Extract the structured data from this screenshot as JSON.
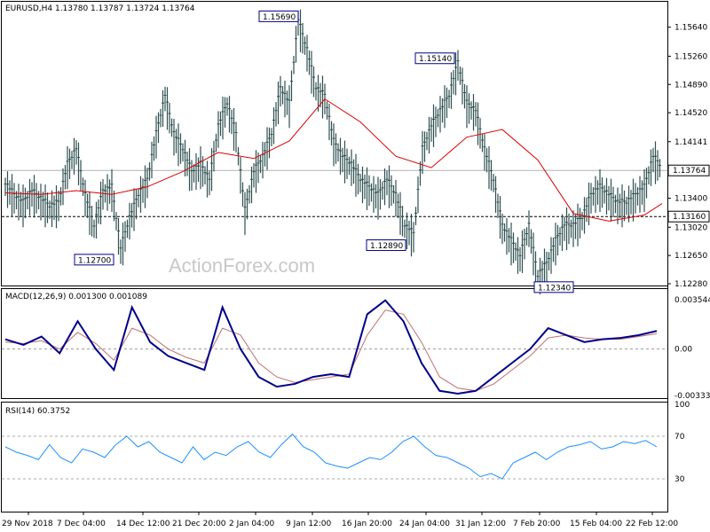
{
  "header": {
    "symbol_line": "EURUSD,H4  1.13780 1.13787 1.13724 1.13764",
    "watermark": "ActionForex.com"
  },
  "price_panel": {
    "y_ticks": [
      "1.15640",
      "1.15260",
      "1.14890",
      "1.14520",
      "1.14141",
      "1.13764",
      "1.13400",
      "1.13020",
      "1.12650",
      "1.12280"
    ],
    "current_price": "1.13764",
    "support_level": "1.13160",
    "annotations": [
      "1.15690",
      "1.15140",
      "1.12700",
      "1.12890",
      "1.12340"
    ]
  },
  "macd_panel": {
    "label": "MACD(12,26,9) 0.001300 0.001089",
    "y_ticks": [
      "0.003544",
      "0.00",
      "-0.003331"
    ]
  },
  "rsi_panel": {
    "label": "RSI(14) 60.3752",
    "y_ticks": [
      "100",
      "70",
      "30",
      "0"
    ]
  },
  "x_labels": [
    "29 Nov 2018",
    "7 Dec 04:00",
    "14 Dec 12:00",
    "21 Dec 20:00",
    "2 Jan 04:00",
    "9 Jan 12:00",
    "16 Jan 20:00",
    "24 Jan 04:00",
    "31 Jan 12:00",
    "7 Feb 20:00",
    "15 Feb 04:00",
    "22 Feb 12:00"
  ],
  "colors": {
    "candles": "#2f4f4f",
    "ma_line": "#dd0000",
    "macd_line": "#00008b",
    "signal_line": "#c07070",
    "rsi_line": "#1e90ff",
    "label_box_border": "#00008b"
  },
  "chart_data": [
    {
      "type": "line",
      "title": "EURUSD,H4",
      "series": [
        {
          "name": "price",
          "x": [
            0,
            10,
            20,
            30,
            40,
            50,
            60,
            70,
            80,
            90,
            100,
            110,
            120,
            130,
            140,
            150,
            160,
            170,
            180,
            190,
            200,
            210,
            220,
            230,
            240,
            250,
            260,
            270,
            280,
            290,
            300,
            310,
            320,
            330,
            340,
            350,
            360,
            370,
            380,
            390,
            400,
            410,
            420,
            430,
            440,
            450,
            460,
            470,
            480,
            490,
            500,
            510,
            520,
            530,
            540,
            550,
            560,
            570,
            580,
            590,
            600,
            610,
            620,
            630,
            640,
            650,
            660,
            670,
            680,
            690,
            700,
            710,
            720,
            730,
            740
          ],
          "values": [
            1.1355,
            1.134,
            1.133,
            1.1345,
            1.1335,
            1.1325,
            1.133,
            1.138,
            1.14,
            1.134,
            1.13,
            1.1345,
            1.135,
            1.127,
            1.131,
            1.134,
            1.136,
            1.142,
            1.147,
            1.142,
            1.14,
            1.137,
            1.138,
            1.136,
            1.143,
            1.146,
            1.142,
            1.132,
            1.137,
            1.139,
            1.142,
            1.148,
            1.146,
            1.1569,
            1.153,
            1.148,
            1.147,
            1.141,
            1.139,
            1.138,
            1.136,
            1.135,
            1.134,
            1.136,
            1.134,
            1.13,
            1.1289,
            1.14,
            1.143,
            1.145,
            1.147,
            1.1514,
            1.146,
            1.145,
            1.14,
            1.136,
            1.13,
            1.128,
            1.126,
            1.13,
            1.1234,
            1.125,
            1.128,
            1.13,
            1.13,
            1.131,
            1.134,
            1.135,
            1.134,
            1.133,
            1.133,
            1.134,
            1.135,
            1.139,
            1.1376
          ]
        },
        {
          "name": "ma",
          "x": [
            0,
            40,
            80,
            120,
            160,
            200,
            240,
            280,
            320,
            360,
            400,
            440,
            480,
            520,
            560,
            600,
            640,
            680,
            720,
            740
          ],
          "values": [
            1.1347,
            1.1345,
            1.135,
            1.1345,
            1.1355,
            1.1375,
            1.14,
            1.1392,
            1.1415,
            1.147,
            1.144,
            1.1395,
            1.138,
            1.142,
            1.143,
            1.139,
            1.132,
            1.131,
            1.1318,
            1.1333
          ]
        }
      ],
      "ylim": [
        1.1228,
        1.1595
      ]
    },
    {
      "type": "line",
      "title": "MACD(12,26,9) 0.001300 0.001089",
      "series": [
        {
          "name": "MACD",
          "values": [
            0.0007,
            0.0003,
            0.0009,
            -0.0003,
            0.002,
            0.0,
            -0.0015,
            0.003,
            0.0005,
            -0.0005,
            -0.001,
            -0.0015,
            0.003,
            0.0,
            -0.002,
            -0.0027,
            -0.0025,
            -0.002,
            -0.0018,
            -0.002,
            0.0025,
            0.0035,
            0.002,
            -0.001,
            -0.003,
            -0.0032,
            -0.003,
            -0.002,
            -0.001,
            0.0,
            0.0015,
            0.001,
            0.0005,
            0.0007,
            0.0008,
            0.001,
            0.0013
          ]
        },
        {
          "name": "signal",
          "values": [
            0.0005,
            0.0004,
            0.0006,
            0.0,
            0.0012,
            0.0004,
            -0.0008,
            0.0015,
            0.001,
            0.0,
            -0.0006,
            -0.001,
            0.0015,
            0.001,
            -0.001,
            -0.002,
            -0.0024,
            -0.0022,
            -0.002,
            -0.0018,
            0.001,
            0.0028,
            0.0025,
            0.0005,
            -0.002,
            -0.0028,
            -0.003,
            -0.0025,
            -0.0015,
            -0.0005,
            0.0008,
            0.001,
            0.0008,
            0.0007,
            0.0007,
            0.0009,
            0.0011
          ]
        }
      ],
      "ylim": [
        -0.003331,
        0.003544
      ]
    },
    {
      "type": "line",
      "title": "RSI(14) 60.3752",
      "series": [
        {
          "name": "RSI",
          "values": [
            60,
            55,
            52,
            48,
            62,
            50,
            45,
            58,
            55,
            50,
            62,
            70,
            60,
            65,
            55,
            50,
            45,
            60,
            48,
            55,
            52,
            60,
            65,
            55,
            50,
            62,
            72,
            60,
            55,
            45,
            42,
            40,
            45,
            50,
            48,
            55,
            65,
            70,
            60,
            52,
            50,
            45,
            40,
            32,
            35,
            30,
            45,
            50,
            55,
            48,
            55,
            60,
            62,
            65,
            58,
            60,
            65,
            63,
            66,
            60
          ]
        }
      ],
      "ylim": [
        0,
        100
      ]
    }
  ]
}
